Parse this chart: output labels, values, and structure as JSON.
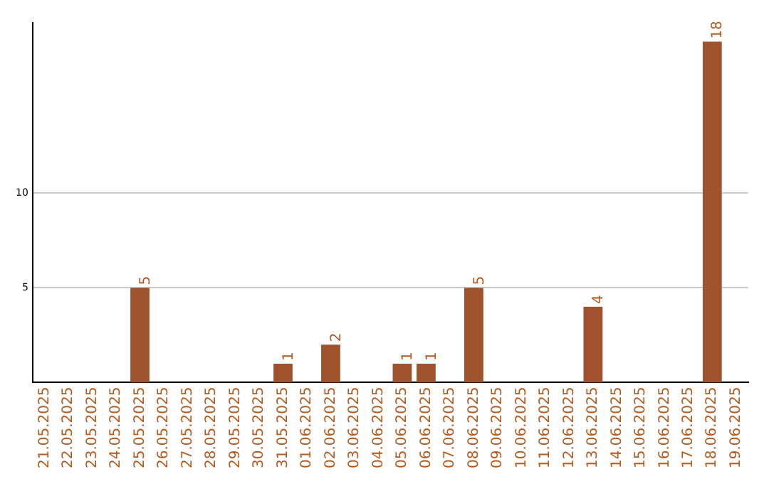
{
  "chart_data": {
    "type": "bar",
    "categories": [
      "21.05.2025",
      "22.05.2025",
      "23.05.2025",
      "24.05.2025",
      "25.05.2025",
      "26.05.2025",
      "27.05.2025",
      "28.05.2025",
      "29.05.2025",
      "30.05.2025",
      "31.05.2025",
      "01.06.2025",
      "02.06.2025",
      "03.06.2025",
      "04.06.2025",
      "05.06.2025",
      "06.06.2025",
      "07.06.2025",
      "08.06.2025",
      "09.06.2025",
      "10.06.2025",
      "11.06.2025",
      "12.06.2025",
      "13.06.2025",
      "14.06.2025",
      "15.06.2025",
      "16.06.2025",
      "17.06.2025",
      "18.06.2025",
      "19.06.2025"
    ],
    "values": [
      0,
      0,
      0,
      0,
      5,
      0,
      0,
      0,
      0,
      0,
      1,
      0,
      2,
      0,
      0,
      1,
      1,
      0,
      5,
      0,
      0,
      0,
      0,
      4,
      0,
      0,
      0,
      0,
      18,
      0
    ],
    "value_labels": [
      null,
      null,
      null,
      null,
      "5",
      null,
      null,
      null,
      null,
      null,
      "1",
      null,
      "2",
      null,
      null,
      "1",
      "1",
      null,
      "5",
      null,
      null,
      null,
      null,
      "4",
      null,
      null,
      null,
      null,
      "18",
      null
    ],
    "color": "#a0522d",
    "ylim": [
      0,
      19
    ],
    "yticks": [
      5,
      10
    ],
    "grid": "y"
  }
}
